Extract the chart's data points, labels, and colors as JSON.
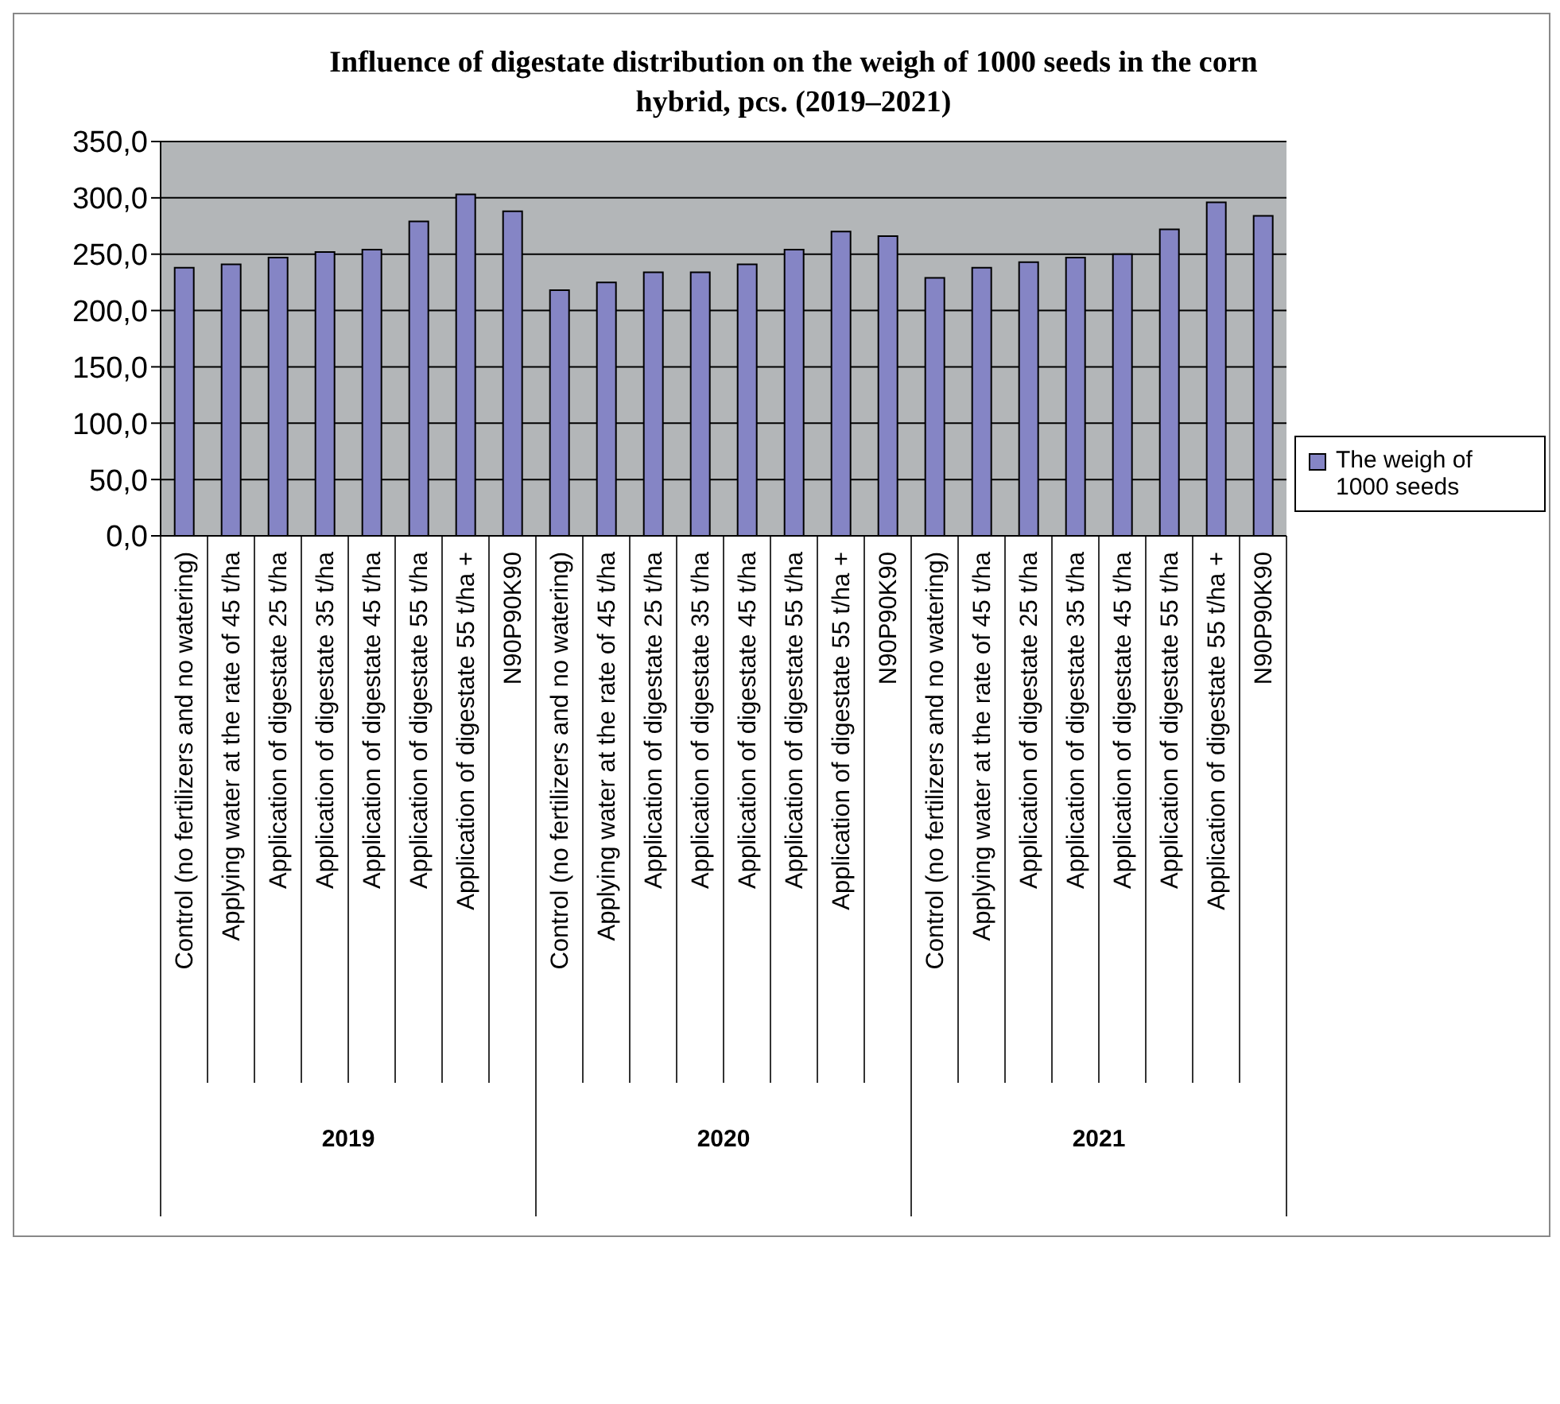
{
  "chart_data": {
    "type": "bar",
    "title": "Influence of digestate distribution on the weigh of 1000 seeds in the corn hybrid, pcs. (2019–2021)",
    "categories": [
      "Control (no fertilizers and no watering)",
      "Applying water at the rate of 45 t/ha",
      "Application of digestate 25 t/ha",
      "Application of digestate 35 t/ha",
      "Application of digestate 45 t/ha",
      "Application of digestate 55 t/ha",
      "Application of digestate 55 t/ha +",
      "N90P90K90",
      "Control (no fertilizers and no watering)",
      "Applying water at the rate of 45 t/ha",
      "Application of digestate 25 t/ha",
      "Application of digestate 35 t/ha",
      "Application of digestate 45 t/ha",
      "Application of digestate 55 t/ha",
      "Application of digestate 55 t/ha +",
      "N90P90K90",
      "Control (no fertilizers and no watering)",
      "Applying water at the rate of 45 t/ha",
      "Application of digestate 25 t/ha",
      "Application of digestate 35 t/ha",
      "Application of digestate 45 t/ha",
      "Application of digestate 55 t/ha",
      "Application of digestate 55 t/ha +",
      "N90P90K90"
    ],
    "series": [
      {
        "name": "The weigh of 1000 seeds",
        "color": "#8585c5",
        "values": [
          238,
          241,
          247,
          252,
          254,
          279,
          303,
          288,
          218,
          225,
          234,
          234,
          241,
          254,
          270,
          266,
          229,
          238,
          243,
          247,
          250,
          272,
          296,
          284
        ]
      }
    ],
    "annotations": [
      "2019",
      "2020",
      "2021"
    ],
    "ylim": [
      0,
      350
    ],
    "yticks": [
      {
        "value": 0,
        "label": "0,0"
      },
      {
        "value": 50,
        "label": "50,0"
      },
      {
        "value": 100,
        "label": "100,0"
      },
      {
        "value": 150,
        "label": "150,0"
      },
      {
        "value": 200,
        "label": "200,0"
      },
      {
        "value": 250,
        "label": "250,0"
      },
      {
        "value": 300,
        "label": "300,0"
      },
      {
        "value": 350,
        "label": "350,0"
      }
    ],
    "grid": "y",
    "legend": "right"
  }
}
